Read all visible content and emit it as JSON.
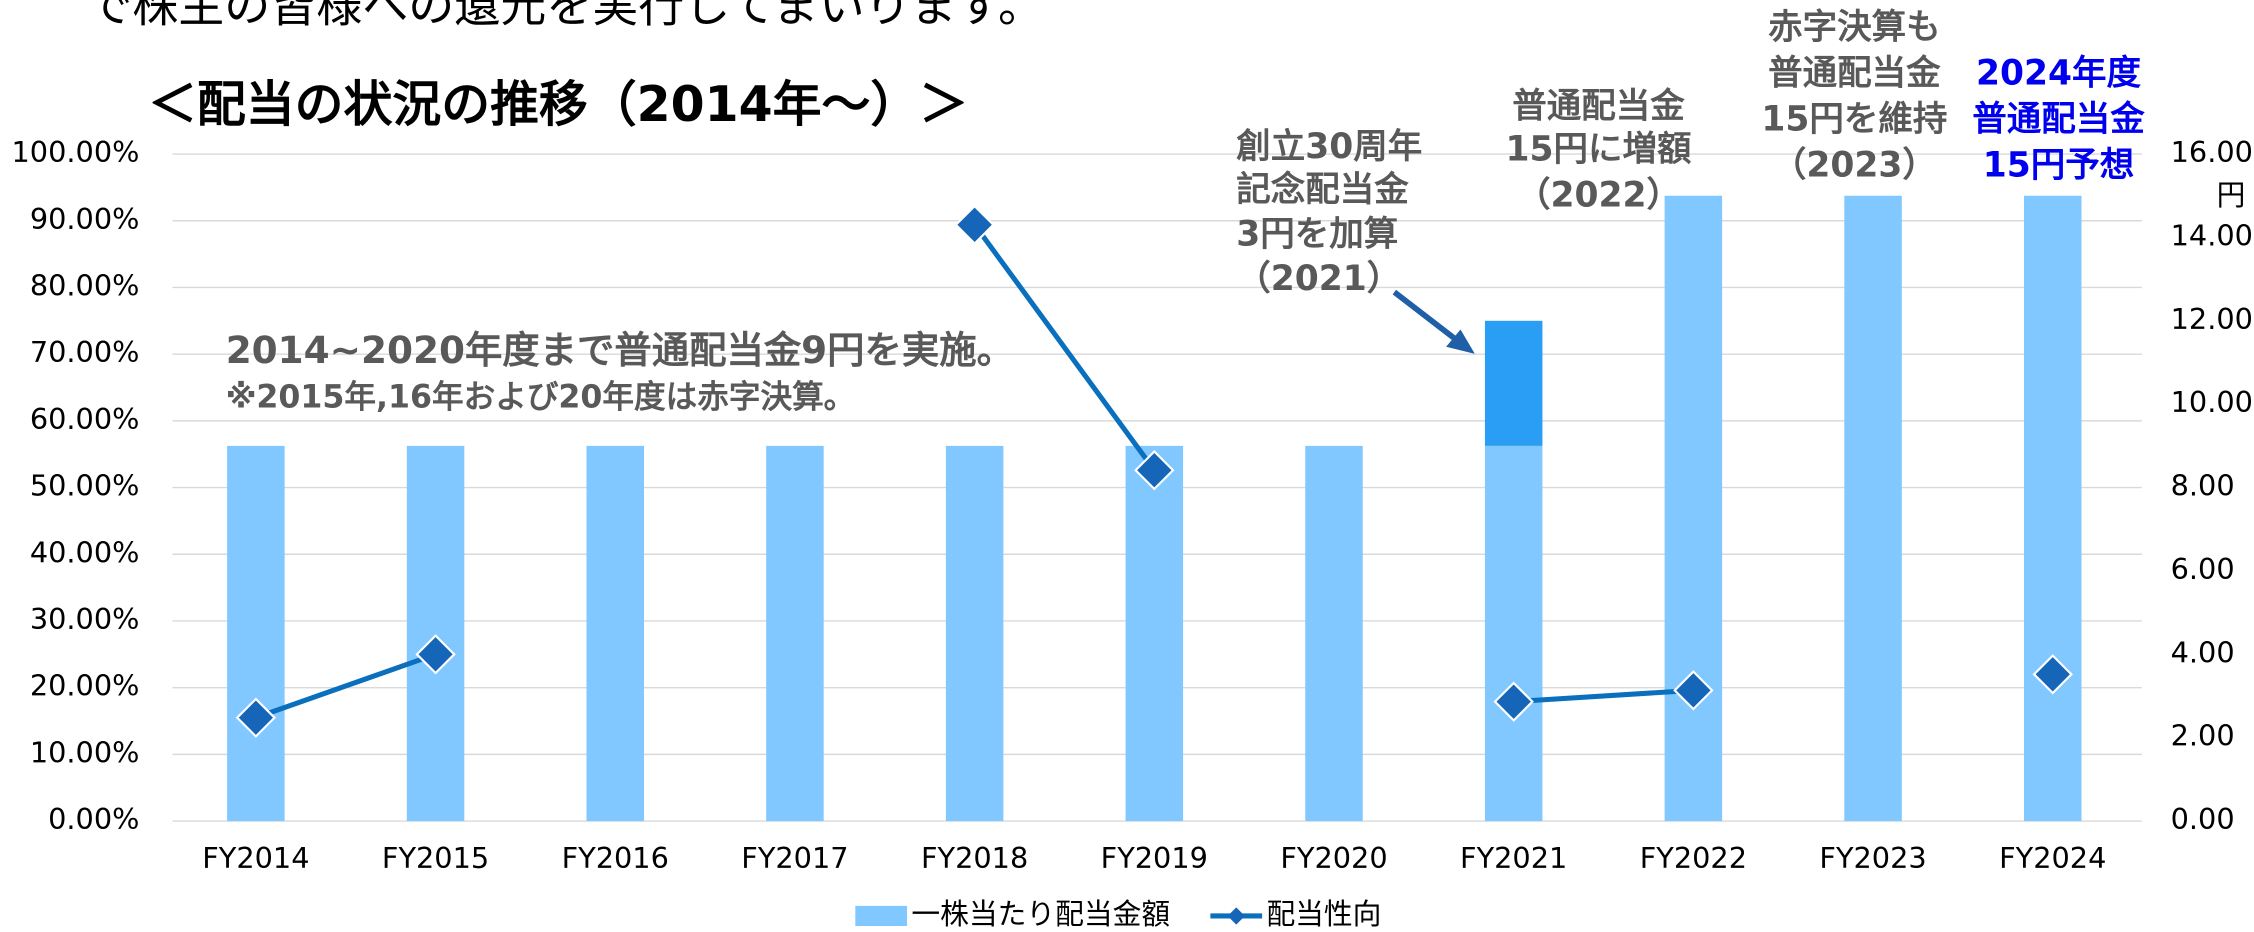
{
  "chart_data": {
    "type": "bar",
    "top_text": "で株主の皆様への還元を実行してまいります。",
    "title": "＜配当の状況の推移（2014年～）＞",
    "y2_unit": "円",
    "categories": [
      "FY2014",
      "FY2015",
      "FY2016",
      "FY2017",
      "FY2018",
      "FY2019",
      "FY2020",
      "FY2021",
      "FY2022",
      "FY2023",
      "FY2024"
    ],
    "series": [
      {
        "name": "一株当たり配当金額",
        "type": "bar",
        "axis": "y2",
        "color": "#80c8ff",
        "values": [
          9,
          9,
          9,
          9,
          9,
          9,
          9,
          9,
          15,
          15,
          15
        ]
      },
      {
        "type": "bar",
        "stacked": true,
        "axis": "y2",
        "color": "#2a9df4",
        "values": [
          null,
          null,
          null,
          null,
          null,
          null,
          null,
          3,
          null,
          null,
          null
        ]
      },
      {
        "name": "配当性向",
        "type": "line",
        "axis": "y",
        "color": "#0a6fbd",
        "values": [
          15.5,
          25,
          null,
          null,
          89.4,
          52.6,
          null,
          17.9,
          19.6,
          null,
          22
        ]
      }
    ],
    "ylim": [
      0,
      100
    ],
    "yticks": [
      {
        "value": 0,
        "label": "0.00%"
      },
      {
        "value": 10,
        "label": "10.00%"
      },
      {
        "value": 20,
        "label": "20.00%"
      },
      {
        "value": 30,
        "label": "30.00%"
      },
      {
        "value": 40,
        "label": "40.00%"
      },
      {
        "value": 50,
        "label": "50.00%"
      },
      {
        "value": 60,
        "label": "60.00%"
      },
      {
        "value": 70,
        "label": "70.00%"
      },
      {
        "value": 80,
        "label": "80.00%"
      },
      {
        "value": 90,
        "label": "90.00%"
      },
      {
        "value": 100,
        "label": "100.00%"
      }
    ],
    "y2lim": [
      0,
      16
    ],
    "y2ticks": [
      {
        "value": 0,
        "label": "0.00"
      },
      {
        "value": 2,
        "label": "2.00"
      },
      {
        "value": 4,
        "label": "4.00"
      },
      {
        "value": 6,
        "label": "6.00"
      },
      {
        "value": 8,
        "label": "8.00"
      },
      {
        "value": 10,
        "label": "10.00"
      },
      {
        "value": 12,
        "label": "12.00"
      },
      {
        "value": 14,
        "label": "14.00"
      },
      {
        "value": 16,
        "label": "16.00"
      }
    ],
    "grid": true,
    "legend": "bottom",
    "annotations": [
      {
        "lines": [
          "2014~2020年度まで普通配当金9円を実施。",
          "※2015年,16年および20年度は赤字決算。"
        ],
        "color": "#595959"
      },
      {
        "lines": [
          "創立30周年",
          "記念配当金",
          "3円を加算",
          "（2021）"
        ],
        "color": "#595959"
      },
      {
        "lines": [
          "普通配当金",
          "15円に増額",
          "（2022）"
        ],
        "color": "#595959"
      },
      {
        "lines": [
          "赤字決算も",
          "普通配当金",
          "15円を維持",
          "（2023）"
        ],
        "color": "#595959"
      },
      {
        "lines": [
          "2024年度",
          "普通配当金",
          "15円予想"
        ],
        "color": "#0000ee"
      }
    ]
  }
}
